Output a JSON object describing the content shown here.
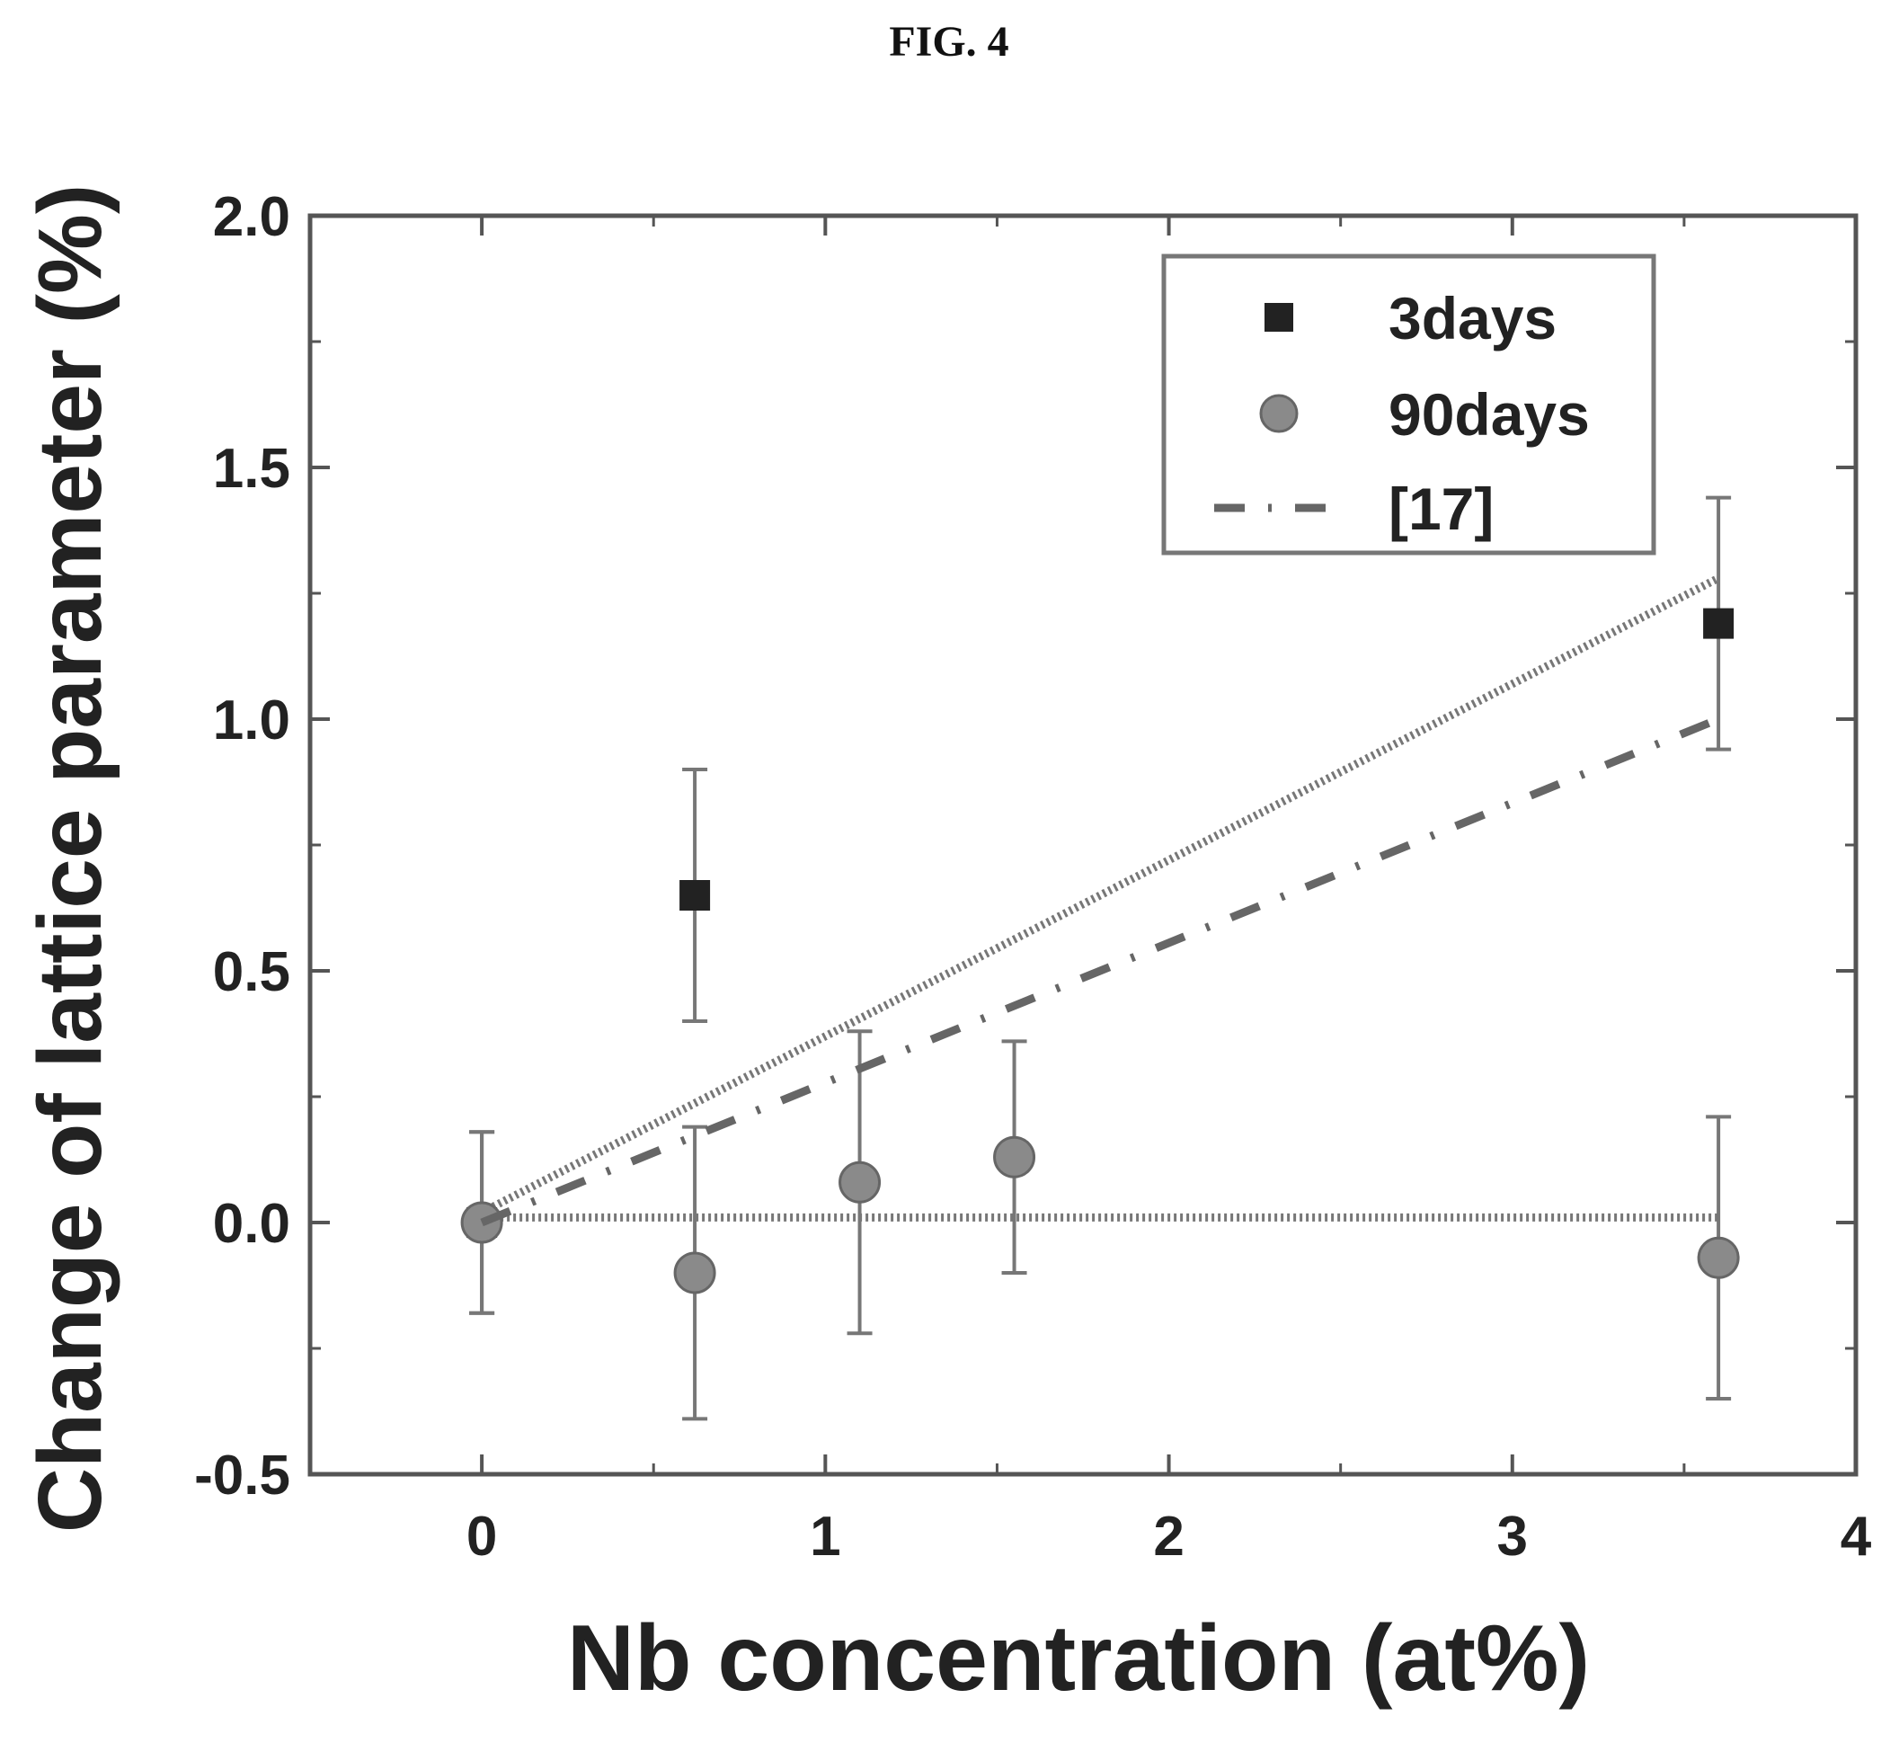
{
  "figure_title": "FIG. 4",
  "colors": {
    "axis": "#555555",
    "marker_3days": "#222222",
    "marker_90days": "#8a8a8a",
    "text": "#222222"
  },
  "chart_data": {
    "type": "scatter",
    "xlabel": "Nb concentration (at%)",
    "ylabel": "Change of lattice parameter (%)",
    "xlim": [
      -0.5,
      4
    ],
    "ylim": [
      -0.5,
      2.0
    ],
    "x_ticks": [
      0,
      1,
      2,
      3,
      4
    ],
    "x_tick_labels": [
      "0",
      "1",
      "2",
      "3",
      "4"
    ],
    "y_ticks": [
      -0.5,
      0.0,
      0.5,
      1.0,
      1.5,
      2.0
    ],
    "y_tick_labels": [
      "-0.5",
      "0.0",
      "0.5",
      "1.0",
      "1.5",
      "2.0"
    ],
    "grid": false,
    "legend_position": "top-right",
    "series": [
      {
        "name": "3days",
        "marker": "square",
        "x": [
          0,
          0.62,
          3.6
        ],
        "y": [
          0.0,
          0.65,
          1.19
        ],
        "yerr": [
          0.18,
          0.25,
          0.25
        ]
      },
      {
        "name": "90days",
        "marker": "circle",
        "x": [
          0,
          0.62,
          1.1,
          1.55,
          3.6
        ],
        "y": [
          0.0,
          -0.1,
          0.08,
          0.13,
          -0.07
        ],
        "yerr": [
          0.18,
          0.29,
          0.3,
          0.23,
          0.28
        ]
      },
      {
        "name": "[17]",
        "marker": "dash-dot-line",
        "x": [
          0,
          3.6
        ],
        "y": [
          0.0,
          1.0
        ]
      }
    ],
    "fit_lines": [
      {
        "style": "dotted",
        "x": [
          0,
          3.6
        ],
        "y": [
          0.02,
          1.28
        ]
      },
      {
        "style": "dotted",
        "x": [
          0,
          3.6
        ],
        "y": [
          0.01,
          0.01
        ]
      }
    ]
  }
}
